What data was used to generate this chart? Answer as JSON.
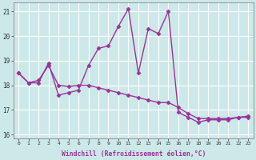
{
  "xlabel": "Windchill (Refroidissement éolien,°C)",
  "line1_y": [
    18.5,
    18.1,
    18.1,
    18.9,
    17.6,
    17.7,
    17.8,
    18.8,
    19.5,
    19.6,
    20.4,
    21.1,
    18.5,
    20.3,
    20.1,
    21.0,
    16.9,
    16.7,
    16.5,
    16.6,
    16.6,
    16.6,
    16.7,
    16.7
  ],
  "line2_y": [
    18.5,
    18.1,
    18.2,
    18.8,
    18.0,
    17.95,
    18.0,
    18.0,
    17.9,
    17.8,
    17.7,
    17.6,
    17.5,
    17.4,
    17.3,
    17.3,
    17.1,
    16.85,
    16.65,
    16.65,
    16.65,
    16.65,
    16.7,
    16.75
  ],
  "x": [
    0,
    1,
    2,
    3,
    4,
    5,
    6,
    7,
    8,
    9,
    10,
    11,
    12,
    13,
    14,
    15,
    16,
    17,
    18,
    19,
    20,
    21,
    22,
    23
  ],
  "ylim": [
    15.85,
    21.35
  ],
  "yticks": [
    16,
    17,
    18,
    19,
    20,
    21
  ],
  "xticks": [
    0,
    1,
    2,
    3,
    4,
    5,
    6,
    7,
    8,
    9,
    10,
    11,
    12,
    13,
    14,
    15,
    16,
    17,
    18,
    19,
    20,
    21,
    22,
    23
  ],
  "line_color": "#993399",
  "bg_color": "#cce8e8",
  "grid_color": "#ffffff",
  "marker": "D",
  "markersize": 2.5,
  "linewidth": 1.0,
  "tick_color": "#333333",
  "xlabel_color": "#993399",
  "xlabel_fontsize": 5.8
}
